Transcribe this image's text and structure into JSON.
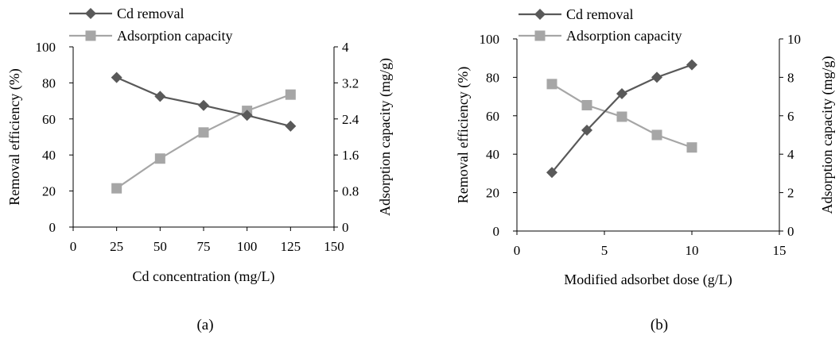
{
  "chart_data": [
    {
      "id": "a",
      "type": "line",
      "caption": "(a)",
      "xlabel": "Cd concentration (mg/L)",
      "ylabel": "Removal efficiency (%)",
      "y2label": "Adsorption capacity (mg/g)",
      "xlim": [
        0,
        150
      ],
      "xticks": [
        "0",
        "25",
        "50",
        "75",
        "100",
        "125",
        "150"
      ],
      "ylim": [
        0,
        100
      ],
      "yticks": [
        "0",
        "20",
        "40",
        "60",
        "80",
        "100"
      ],
      "y2lim": [
        0,
        4
      ],
      "y2ticks": [
        "0",
        "0.8",
        "1.6",
        "2.4",
        "3.2",
        "4"
      ],
      "grid": false,
      "legend_position": "top-left",
      "x": [
        25,
        50,
        75,
        100,
        125
      ],
      "series": [
        {
          "name": "Cd removal",
          "axis": "left",
          "marker": "diamond",
          "color": "#595959",
          "values": [
            83,
            72.5,
            67.5,
            62,
            56
          ]
        },
        {
          "name": "Adsorption capacity",
          "axis": "right",
          "marker": "square",
          "color": "#a6a6a6",
          "values": [
            0.86,
            1.52,
            2.1,
            2.58,
            2.94
          ]
        }
      ]
    },
    {
      "id": "b",
      "type": "line",
      "caption": "(b)",
      "xlabel": "Modified adsorbet dose (g/L)",
      "ylabel": "Removal efficiency (%)",
      "y2label": "Adsorption capacity (mg/g)",
      "xlim": [
        0,
        15
      ],
      "xticks": [
        "0",
        "5",
        "10",
        "15"
      ],
      "ylim": [
        0,
        100
      ],
      "yticks": [
        "0",
        "20",
        "40",
        "60",
        "80",
        "100"
      ],
      "y2lim": [
        0,
        10
      ],
      "y2ticks": [
        "0",
        "2",
        "4",
        "6",
        "8",
        "10"
      ],
      "grid": false,
      "legend_position": "top-left",
      "x": [
        2,
        4,
        6,
        8,
        10
      ],
      "series": [
        {
          "name": "Cd removal",
          "axis": "left",
          "marker": "diamond",
          "color": "#595959",
          "values": [
            30.5,
            52.5,
            71.5,
            80,
            86.5
          ]
        },
        {
          "name": "Adsorption capacity",
          "axis": "right",
          "marker": "square",
          "color": "#a6a6a6",
          "values": [
            7.65,
            6.55,
            5.95,
            5.0,
            4.35
          ]
        }
      ]
    }
  ]
}
